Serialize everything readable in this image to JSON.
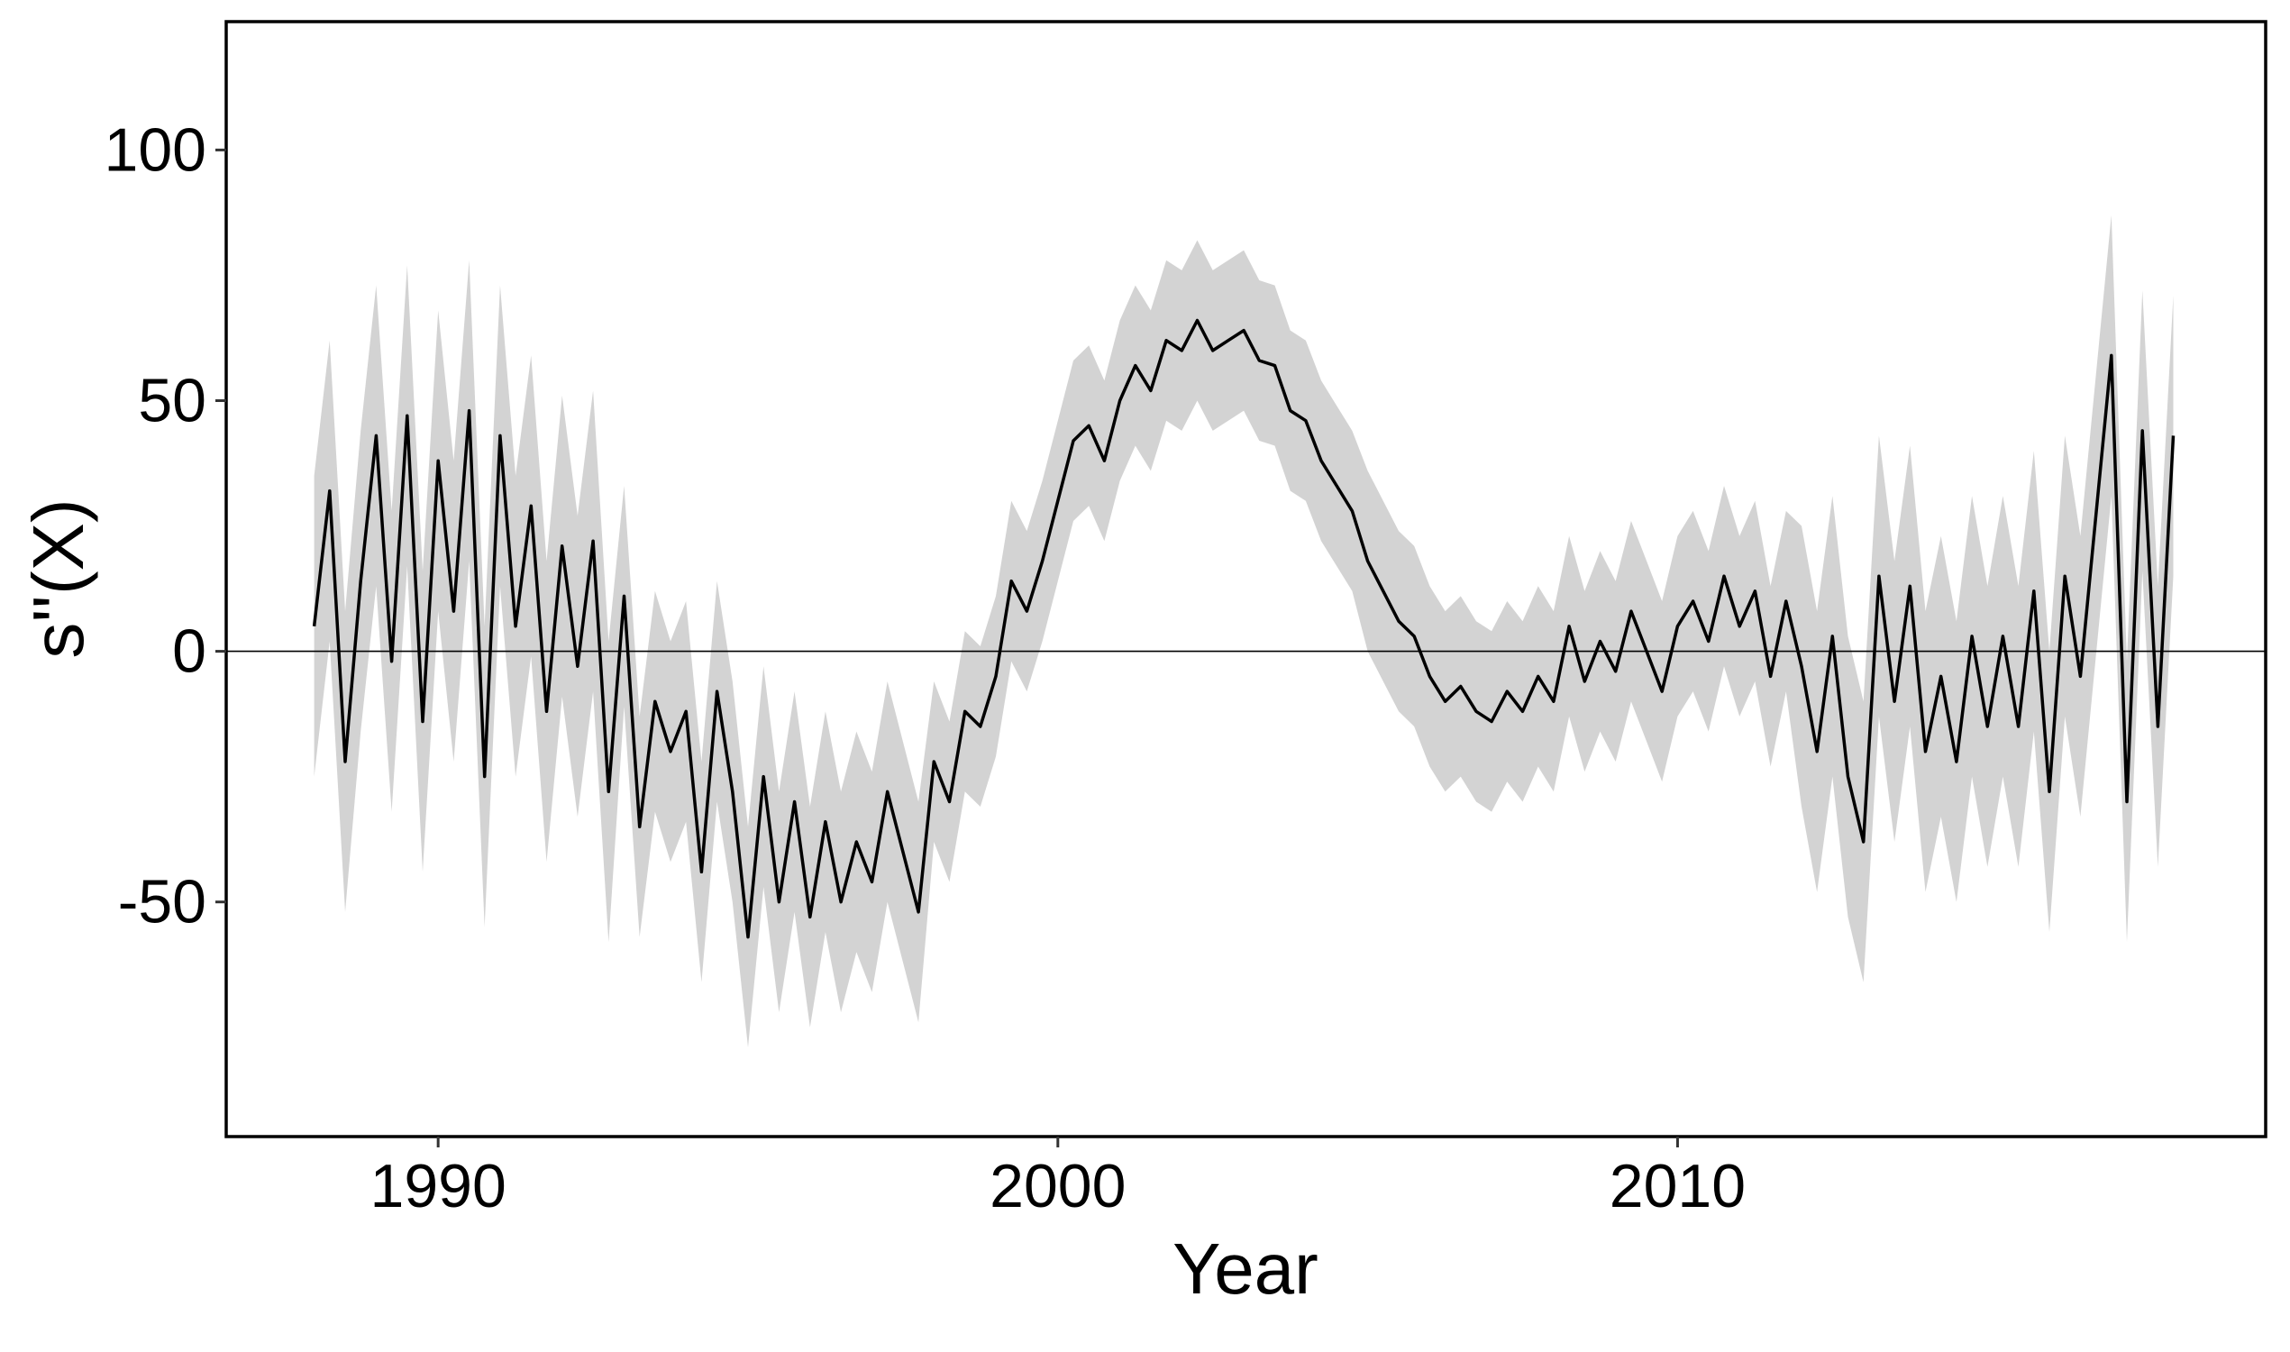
{
  "chart_data": {
    "type": "line",
    "xlabel": "Year",
    "ylabel": "s''(X)",
    "xlim": [
      1986.58,
      2019.49
    ],
    "ylim": [
      -96.8,
      125.6
    ],
    "xticks": [
      1990,
      2000,
      2010
    ],
    "yticks": [
      -50,
      0,
      50,
      100
    ],
    "hline": 0,
    "line_color": "#000000",
    "band_color": "#d3d3d3",
    "x": [
      1988,
      1988.25,
      1988.5,
      1988.75,
      1989,
      1989.25,
      1989.5,
      1989.75,
      1990,
      1990.25,
      1990.5,
      1990.75,
      1991,
      1991.25,
      1991.5,
      1991.75,
      1992,
      1992.25,
      1992.5,
      1992.75,
      1993,
      1993.25,
      1993.5,
      1993.75,
      1994,
      1994.25,
      1994.5,
      1994.75,
      1995,
      1995.25,
      1995.5,
      1995.75,
      1996,
      1996.25,
      1996.5,
      1996.75,
      1997,
      1997.25,
      1997.5,
      1997.75,
      1998,
      1998.25,
      1998.5,
      1998.75,
      1999,
      1999.25,
      1999.5,
      1999.75,
      2000,
      2000.25,
      2000.5,
      2000.75,
      2001,
      2001.25,
      2001.5,
      2001.75,
      2002,
      2002.25,
      2002.5,
      2002.75,
      2003,
      2003.25,
      2003.5,
      2003.75,
      2004,
      2004.25,
      2004.5,
      2004.75,
      2005,
      2005.25,
      2005.5,
      2005.75,
      2006,
      2006.25,
      2006.5,
      2006.75,
      2007,
      2007.25,
      2007.5,
      2007.75,
      2008,
      2008.25,
      2008.5,
      2008.75,
      2009,
      2009.25,
      2009.5,
      2009.75,
      2010,
      2010.25,
      2010.5,
      2010.75,
      2011,
      2011.25,
      2011.5,
      2011.75,
      2012,
      2012.25,
      2012.5,
      2012.75,
      2013,
      2013.25,
      2013.5,
      2013.75,
      2014,
      2014.25,
      2014.5,
      2014.75,
      2015,
      2015.25,
      2015.5,
      2015.75,
      2016,
      2016.25,
      2016.5,
      2016.75,
      2017,
      2017.25,
      2017.5,
      2017.75,
      2018
    ],
    "values": [
      5,
      32,
      -22,
      14,
      43,
      -2,
      47,
      -14,
      38,
      8,
      48,
      -25,
      43,
      5,
      29,
      -12,
      21,
      -3,
      22,
      -28,
      11,
      -35,
      -10,
      -20,
      -12,
      -44,
      -8,
      -28,
      -57,
      -25,
      -50,
      -30,
      -53,
      -34,
      -50,
      -38,
      -46,
      -28,
      -40,
      -52,
      -22,
      -30,
      -12,
      -15,
      -5,
      14,
      8,
      18,
      30,
      42,
      45,
      38,
      50,
      57,
      52,
      62,
      60,
      66,
      60,
      62,
      64,
      58,
      57,
      48,
      46,
      38,
      33,
      28,
      18,
      12,
      6,
      3,
      -5,
      -10,
      -7,
      -12,
      -14,
      -8,
      -12,
      -5,
      -10,
      5,
      -6,
      2,
      -4,
      8,
      0,
      -8,
      5,
      10,
      2,
      15,
      5,
      12,
      -5,
      10,
      -3,
      -20,
      3,
      -25,
      -38,
      15,
      -10,
      13,
      -20,
      -5,
      -22,
      3,
      -15,
      3,
      -15,
      12,
      -28,
      15,
      -5,
      27,
      59,
      -30,
      44,
      -15,
      43
    ],
    "band": {
      "upper": [
        35,
        62,
        8,
        44,
        73,
        28,
        77,
        16,
        68,
        38,
        78,
        5,
        73,
        35,
        59,
        18,
        51,
        27,
        52,
        2,
        33,
        -13,
        12,
        2,
        10,
        -22,
        14,
        -6,
        -35,
        -3,
        -28,
        -8,
        -31,
        -12,
        -28,
        -16,
        -24,
        -6,
        -18,
        -30,
        -6,
        -14,
        4,
        1,
        11,
        30,
        24,
        34,
        46,
        58,
        61,
        54,
        66,
        73,
        68,
        78,
        76,
        82,
        76,
        78,
        80,
        74,
        73,
        64,
        62,
        54,
        49,
        44,
        36,
        30,
        24,
        21,
        13,
        8,
        11,
        6,
        4,
        10,
        6,
        13,
        8,
        23,
        12,
        20,
        14,
        26,
        18,
        10,
        23,
        28,
        20,
        33,
        23,
        30,
        13,
        28,
        25,
        8,
        31,
        3,
        -10,
        43,
        18,
        41,
        8,
        23,
        6,
        31,
        13,
        31,
        13,
        40,
        0,
        43,
        23,
        55,
        87,
        -2,
        72,
        13,
        71
      ],
      "lower": [
        -25,
        2,
        -52,
        -16,
        13,
        -32,
        17,
        -44,
        8,
        -22,
        18,
        -55,
        13,
        -25,
        -1,
        -42,
        -9,
        -33,
        -8,
        -58,
        -11,
        -57,
        -32,
        -42,
        -34,
        -66,
        -30,
        -50,
        -79,
        -47,
        -72,
        -52,
        -75,
        -56,
        -72,
        -60,
        -68,
        -50,
        -62,
        -74,
        -38,
        -46,
        -28,
        -31,
        -21,
        -2,
        -8,
        2,
        14,
        26,
        29,
        22,
        34,
        41,
        36,
        46,
        44,
        50,
        44,
        46,
        48,
        42,
        41,
        32,
        30,
        22,
        17,
        12,
        0,
        -6,
        -12,
        -15,
        -23,
        -28,
        -25,
        -30,
        -32,
        -26,
        -30,
        -23,
        -28,
        -13,
        -24,
        -16,
        -22,
        -10,
        -18,
        -26,
        -13,
        -8,
        -16,
        -3,
        -13,
        -6,
        -23,
        -8,
        -31,
        -48,
        -25,
        -53,
        -66,
        -13,
        -38,
        -15,
        -48,
        -33,
        -50,
        -25,
        -43,
        -25,
        -43,
        -16,
        -56,
        -13,
        -33,
        -1,
        31,
        -58,
        16,
        -43,
        15
      ]
    }
  }
}
